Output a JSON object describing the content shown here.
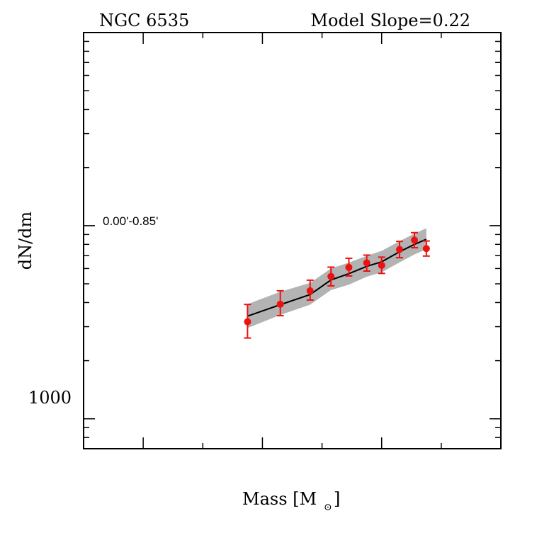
{
  "chart_data": {
    "type": "line",
    "title_left": "NGC 6535",
    "title_right": "Model Slope=0.22",
    "xlabel_main": "Mass [M",
    "xlabel_sub": "⊙",
    "xlabel_close": "]",
    "ylabel": "dN/dm",
    "y_tick_label": "1000",
    "y_scale": "log",
    "annotation": "0.00'-0.85'",
    "annotation_color": "#ee1111",
    "band_color": "#b3b3b3",
    "line_color": "#000000",
    "point_color": "#ee1111",
    "x_range": [
      0.1,
      0.8
    ],
    "y_range": [
      700,
      100000
    ],
    "x_ticks_major": [
      0.2,
      0.4,
      0.6
    ],
    "x_ticks_minor": [
      0.3,
      0.5,
      0.7
    ],
    "y_ticks_major": [
      1000,
      10000
    ],
    "y_ticks_minor": [
      800,
      900,
      2000,
      3000,
      4000,
      5000,
      6000,
      7000,
      8000,
      9000,
      20000,
      30000,
      40000,
      50000,
      60000,
      70000,
      80000,
      90000
    ],
    "series": [
      {
        "type": "scatter",
        "x": [
          0.375,
          0.43,
          0.48,
          0.515,
          0.545,
          0.575,
          0.6,
          0.63,
          0.655,
          0.675
        ],
        "y": [
          3180,
          3920,
          4600,
          5460,
          6080,
          6420,
          6230,
          7530,
          8420,
          7610
        ],
        "yerr_low": [
          560,
          500,
          480,
          580,
          590,
          600,
          570,
          700,
          730,
          650
        ],
        "yerr_high": [
          730,
          680,
          620,
          640,
          700,
          620,
          640,
          760,
          780,
          720
        ]
      },
      {
        "type": "line",
        "x": [
          0.375,
          0.43,
          0.48,
          0.515,
          0.545,
          0.575,
          0.6,
          0.63,
          0.655,
          0.675
        ],
        "y": [
          3400,
          3900,
          4400,
          5240,
          5640,
          6160,
          6500,
          7330,
          8000,
          8500
        ]
      },
      {
        "type": "band",
        "x": [
          0.375,
          0.43,
          0.48,
          0.515,
          0.545,
          0.575,
          0.6,
          0.63,
          0.655,
          0.675
        ],
        "y_low": [
          2950,
          3450,
          3900,
          4640,
          4950,
          5440,
          5740,
          6450,
          7100,
          7550
        ],
        "y_high": [
          3920,
          4550,
          5050,
          6000,
          6440,
          6980,
          7400,
          8320,
          9100,
          9700
        ]
      }
    ]
  }
}
